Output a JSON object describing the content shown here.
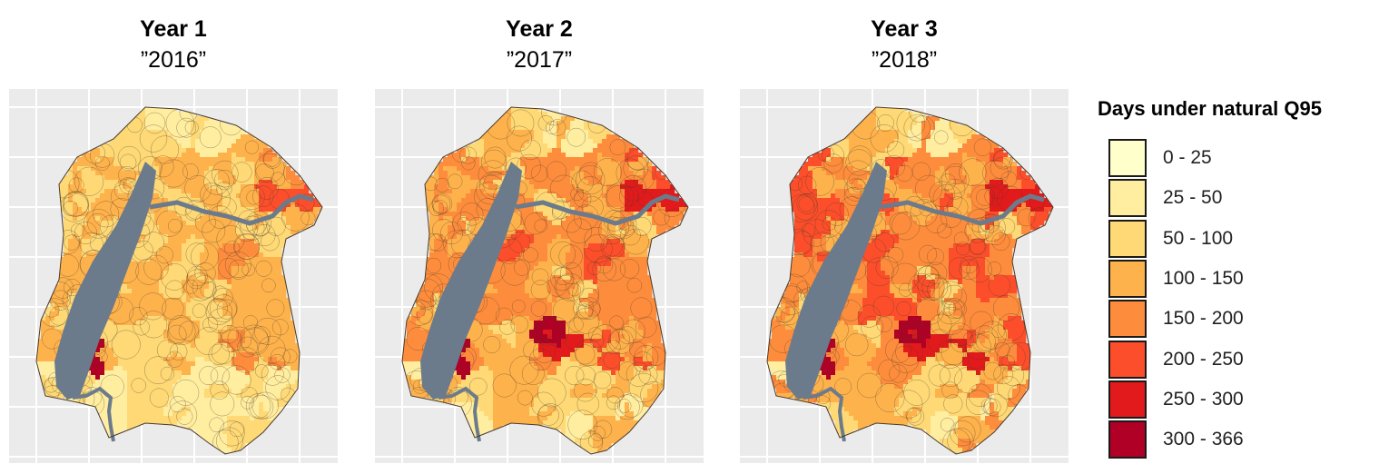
{
  "panels": [
    {
      "year": "Year 1",
      "label": "”2016”"
    },
    {
      "year": "Year 2",
      "label": "”2017”"
    },
    {
      "year": "Year 3",
      "label": "”2018”"
    }
  ],
  "legend": {
    "title": "Days under natural Q95",
    "classes": [
      {
        "label": "0 - 25",
        "color": "#ffffcc"
      },
      {
        "label": "25 - 50",
        "color": "#ffeda0"
      },
      {
        "label": "50 - 100",
        "color": "#fed976"
      },
      {
        "label": "100 - 150",
        "color": "#feb24c"
      },
      {
        "label": "150 - 200",
        "color": "#fd8d3c"
      },
      {
        "label": "200 - 250",
        "color": "#fc4e2a"
      },
      {
        "label": "250 - 300",
        "color": "#e31a1c"
      },
      {
        "label": "300 - 366",
        "color": "#b10026"
      }
    ]
  },
  "colors": {
    "lake": "#6b7b8c",
    "map_background": "#ebebeb",
    "grid": "#ffffff",
    "boundary": "#4a3a2a"
  }
}
